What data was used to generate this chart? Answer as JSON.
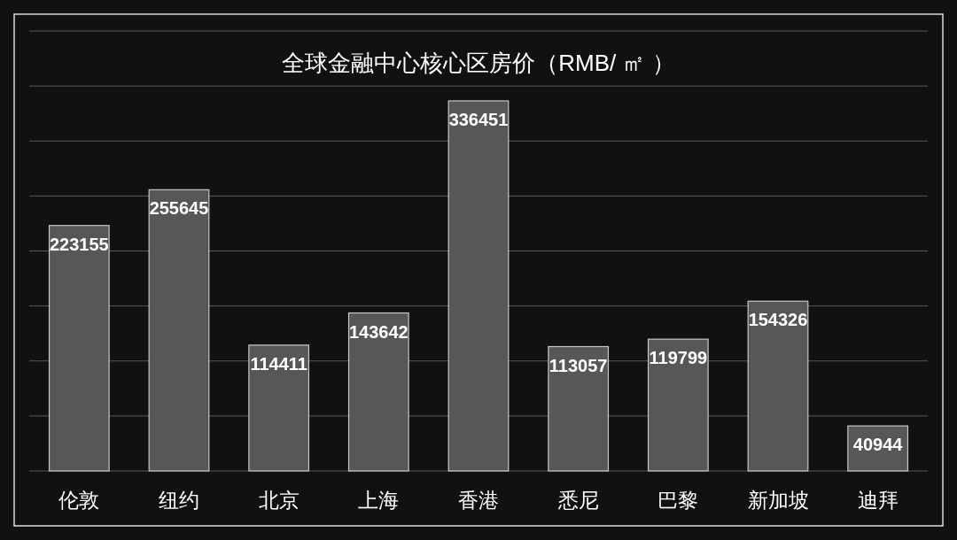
{
  "chart_data": {
    "type": "bar",
    "title": "全球金融中心核心区房价（RMB/ ㎡ ）",
    "categories": [
      "伦敦",
      "纽约",
      "北京",
      "上海",
      "香港",
      "悉尼",
      "巴黎",
      "新加坡",
      "迪拜"
    ],
    "values": [
      223155,
      255645,
      114411,
      143642,
      336451,
      113057,
      119799,
      154326,
      40944
    ],
    "color": "#575757",
    "data_labels": true,
    "grid": "y",
    "ylim": [
      0,
      400000
    ],
    "yticks": [
      {
        "value": 0,
        "label": null
      },
      {
        "value": 50000,
        "label": null
      },
      {
        "value": 100000,
        "label": null
      },
      {
        "value": 150000,
        "label": null
      },
      {
        "value": 200000,
        "label": null
      },
      {
        "value": 250000,
        "label": null
      },
      {
        "value": 300000,
        "label": null
      },
      {
        "value": 350000,
        "label": null
      },
      {
        "value": 400000,
        "label": null
      }
    ],
    "tick_labels": "x"
  }
}
